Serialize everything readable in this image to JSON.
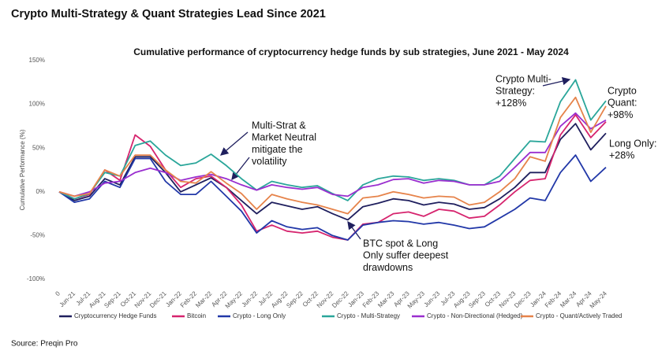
{
  "header": {
    "title": "Crypto Multi-Strategy & Quant Strategies Lead Since 2021"
  },
  "source": "Source: Preqin Pro",
  "chart_data": {
    "type": "line",
    "title": "Cumulative performance of cryptocurrency hedge funds by sub strategies, June 2021 - May 2024",
    "y_label": "Cumulative Performance (%)",
    "categories": [
      "0",
      "Jun-21",
      "Jul-21",
      "Aug-21",
      "Sep-21",
      "Oct-21",
      "Nov-21",
      "Dec-21",
      "Jan-22",
      "Feb-22",
      "Mar-22",
      "Apr-22",
      "May-22",
      "Jun-22",
      "Jul-22",
      "Aug-22",
      "Sep-22",
      "Oct-22",
      "Nov-22",
      "Dec-22",
      "Jan-23",
      "Feb-23",
      "Mar-23",
      "Apr-23",
      "May-23",
      "Jun-23",
      "Jul-23",
      "Aug-23",
      "Sep-23",
      "Oct-23",
      "Nov-23",
      "Dec-23",
      "Jan-24",
      "Feb-24",
      "Mar-24",
      "Apr-24",
      "May-24"
    ],
    "ylim": [
      -100,
      150
    ],
    "yticks": [
      {
        "value": -100,
        "label": "-100%"
      },
      {
        "value": -50,
        "label": "-50%"
      },
      {
        "value": 0,
        "label": "0%"
      },
      {
        "value": 50,
        "label": "50%"
      },
      {
        "value": 100,
        "label": "100%"
      },
      {
        "value": 150,
        "label": "150%"
      }
    ],
    "grid": false,
    "legend": "bottom",
    "series": [
      {
        "name": "Cryptocurrency Hedge Funds",
        "color": "#1f1f5e",
        "values": [
          0,
          -10,
          -5,
          15,
          8,
          40,
          40,
          22,
          0,
          8,
          16,
          5,
          -10,
          -25,
          -12,
          -16,
          -20,
          -17,
          -25,
          -32,
          -17,
          -13,
          -8,
          -10,
          -15,
          -12,
          -14,
          -20,
          -18,
          -8,
          5,
          22,
          22,
          60,
          78,
          48,
          67
        ]
      },
      {
        "name": "Bitcoin",
        "color": "#d6246e",
        "values": [
          0,
          -8,
          -3,
          25,
          13,
          65,
          52,
          25,
          5,
          15,
          18,
          5,
          -15,
          -45,
          -38,
          -45,
          -47,
          -45,
          -52,
          -55,
          -37,
          -35,
          -25,
          -23,
          -28,
          -20,
          -22,
          -30,
          -28,
          -15,
          0,
          13,
          15,
          65,
          88,
          62,
          80
        ]
      },
      {
        "name": "Crypto - Long Only",
        "color": "#2238a8",
        "values": [
          0,
          -12,
          -8,
          12,
          5,
          38,
          38,
          12,
          -3,
          -3,
          12,
          -5,
          -22,
          -47,
          -33,
          -40,
          -43,
          -41,
          -50,
          -55,
          -38,
          -35,
          -33,
          -34,
          -37,
          -35,
          -38,
          -42,
          -40,
          -30,
          -20,
          -7,
          -10,
          22,
          42,
          12,
          28
        ]
      },
      {
        "name": "Crypto - Multi-Strategy",
        "color": "#2aa69a",
        "values": [
          0,
          -8,
          -2,
          22,
          18,
          53,
          58,
          42,
          30,
          33,
          43,
          30,
          15,
          2,
          12,
          8,
          5,
          7,
          -2,
          -10,
          8,
          15,
          18,
          17,
          13,
          15,
          13,
          8,
          8,
          18,
          38,
          58,
          57,
          103,
          128,
          82,
          104
        ]
      },
      {
        "name": "Crypto - Non-Directional (Hedged)",
        "color": "#9a2ecf",
        "values": [
          0,
          -5,
          0,
          10,
          12,
          22,
          27,
          22,
          13,
          17,
          20,
          15,
          8,
          2,
          8,
          5,
          3,
          5,
          -3,
          -5,
          5,
          8,
          14,
          15,
          10,
          13,
          12,
          8,
          8,
          12,
          28,
          45,
          45,
          75,
          90,
          72,
          82
        ]
      },
      {
        "name": "Crypto - Quant/Actively Traded",
        "color": "#e6834a",
        "values": [
          0,
          -5,
          -2,
          25,
          18,
          42,
          42,
          25,
          12,
          10,
          23,
          10,
          -2,
          -20,
          -3,
          -8,
          -12,
          -15,
          -20,
          -25,
          -7,
          -5,
          0,
          -3,
          -7,
          -5,
          -6,
          -15,
          -12,
          0,
          15,
          40,
          35,
          85,
          108,
          68,
          98
        ]
      }
    ],
    "annotations": [
      {
        "lines": [
          "Crypto Multi-",
          "Strategy:",
          "+128%"
        ]
      },
      {
        "lines": [
          "Crypto",
          "Quant:",
          "+98%"
        ]
      },
      {
        "lines": [
          "Long Only:",
          "+28%"
        ]
      },
      {
        "lines": [
          "Multi-Strat &",
          "Market Neutral",
          "mitigate the",
          "volatility"
        ]
      },
      {
        "lines": [
          "BTC spot & Long",
          "Only suffer deepest",
          "drawdowns"
        ]
      }
    ]
  }
}
